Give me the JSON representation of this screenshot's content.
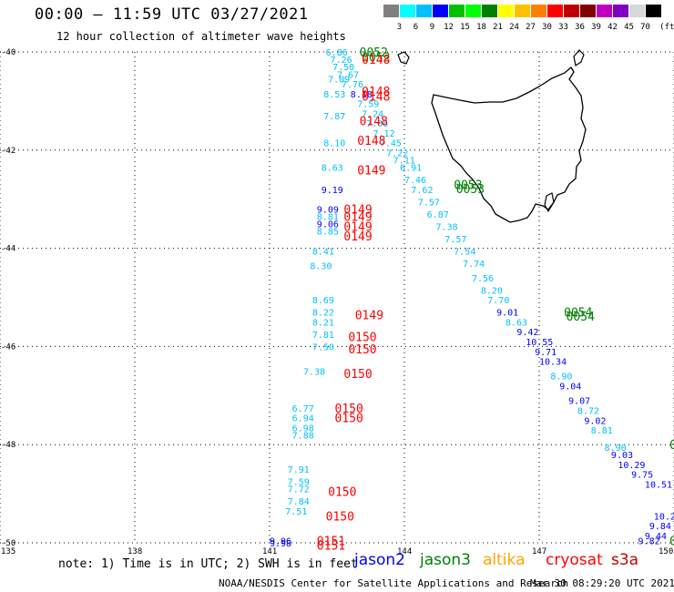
{
  "header": {
    "title": "00:00 – 11:59 UTC 03/27/2021",
    "subtitle": "12 hour collection of altimeter wave heights"
  },
  "scale": {
    "unit": "(ft)",
    "colors": [
      "#808080",
      "#00ffff",
      "#00bfff",
      "#0000ff",
      "#00c000",
      "#00ff00",
      "#008000",
      "#ffff00",
      "#ffc000",
      "#ff8000",
      "#ff0000",
      "#c00000",
      "#800000",
      "#c000c0",
      "#8000c0",
      "#d8d8d8",
      "#000000"
    ],
    "labels": [
      "3",
      "6",
      "9",
      "12",
      "15",
      "18",
      "21",
      "24",
      "27",
      "30",
      "33",
      "36",
      "39",
      "42",
      "45",
      "70"
    ]
  },
  "map": {
    "lat_ticks": [
      "-40",
      "-42",
      "-44",
      "-46",
      "-48",
      "-50"
    ],
    "lon_ticks": [
      "135",
      "138",
      "141",
      "144",
      "147",
      "150"
    ],
    "swh_values": [
      {
        "lon": 142.25,
        "lat": -40.0,
        "v": "6.86",
        "c": "#00bfff"
      },
      {
        "lon": 142.35,
        "lat": -40.15,
        "v": "7.26",
        "c": "#00bfff"
      },
      {
        "lon": 142.4,
        "lat": -40.3,
        "v": "7.50",
        "c": "#00bfff"
      },
      {
        "lon": 142.5,
        "lat": -40.45,
        "v": "7.67",
        "c": "#00bfff"
      },
      {
        "lon": 142.3,
        "lat": -40.55,
        "v": "7.09",
        "c": "#00bfff"
      },
      {
        "lon": 142.6,
        "lat": -40.65,
        "v": "7.76",
        "c": "#00bfff"
      },
      {
        "lon": 142.2,
        "lat": -40.85,
        "v": "8.53",
        "c": "#00bfff"
      },
      {
        "lon": 142.8,
        "lat": -40.85,
        "v": "8.18",
        "c": "#0000ff"
      },
      {
        "lon": 142.95,
        "lat": -41.05,
        "v": "7.59",
        "c": "#00bfff"
      },
      {
        "lon": 143.05,
        "lat": -41.25,
        "v": "7.24",
        "c": "#00bfff"
      },
      {
        "lon": 142.2,
        "lat": -41.3,
        "v": "7.87",
        "c": "#00bfff"
      },
      {
        "lon": 143.15,
        "lat": -41.45,
        "v": "7.06",
        "c": "#00bfff"
      },
      {
        "lon": 143.3,
        "lat": -41.65,
        "v": "7.12",
        "c": "#00bfff"
      },
      {
        "lon": 142.2,
        "lat": -41.85,
        "v": "8.10",
        "c": "#00bfff"
      },
      {
        "lon": 143.45,
        "lat": -41.85,
        "v": "7.45",
        "c": "#00bfff"
      },
      {
        "lon": 143.6,
        "lat": -42.05,
        "v": "7.22",
        "c": "#00bfff"
      },
      {
        "lon": 143.75,
        "lat": -42.2,
        "v": "7.11",
        "c": "#00bfff"
      },
      {
        "lon": 142.15,
        "lat": -42.35,
        "v": "8.63",
        "c": "#00bfff"
      },
      {
        "lon": 143.9,
        "lat": -42.35,
        "v": "6.91",
        "c": "#00bfff"
      },
      {
        "lon": 144.0,
        "lat": -42.6,
        "v": "7.46",
        "c": "#00bfff"
      },
      {
        "lon": 142.15,
        "lat": -42.8,
        "v": "9.19",
        "c": "#0000ff"
      },
      {
        "lon": 144.15,
        "lat": -42.8,
        "v": "7.62",
        "c": "#00bfff"
      },
      {
        "lon": 144.3,
        "lat": -43.05,
        "v": "7.57",
        "c": "#00bfff"
      },
      {
        "lon": 142.05,
        "lat": -43.2,
        "v": "9.09",
        "c": "#0000ff"
      },
      {
        "lon": 144.5,
        "lat": -43.3,
        "v": "6.87",
        "c": "#00bfff"
      },
      {
        "lon": 142.05,
        "lat": -43.35,
        "v": "8.81",
        "c": "#00bfff"
      },
      {
        "lon": 144.7,
        "lat": -43.55,
        "v": "7.38",
        "c": "#00bfff"
      },
      {
        "lon": 142.05,
        "lat": -43.5,
        "v": "9.06",
        "c": "#0000ff"
      },
      {
        "lon": 142.05,
        "lat": -43.65,
        "v": "8.85",
        "c": "#00bfff"
      },
      {
        "lon": 144.9,
        "lat": -43.8,
        "v": "7.57",
        "c": "#00bfff"
      },
      {
        "lon": 141.95,
        "lat": -44.05,
        "v": "8.41",
        "c": "#00bfff"
      },
      {
        "lon": 145.1,
        "lat": -44.05,
        "v": "7.54",
        "c": "#00bfff"
      },
      {
        "lon": 141.9,
        "lat": -44.35,
        "v": "8.30",
        "c": "#00bfff"
      },
      {
        "lon": 145.3,
        "lat": -44.3,
        "v": "7.74",
        "c": "#00bfff"
      },
      {
        "lon": 145.5,
        "lat": -44.6,
        "v": "7.56",
        "c": "#00bfff"
      },
      {
        "lon": 145.7,
        "lat": -44.85,
        "v": "8.20",
        "c": "#00bfff"
      },
      {
        "lon": 141.95,
        "lat": -45.05,
        "v": "8.69",
        "c": "#00bfff"
      },
      {
        "lon": 145.85,
        "lat": -45.05,
        "v": "7.70",
        "c": "#00bfff"
      },
      {
        "lon": 141.95,
        "lat": -45.3,
        "v": "8.22",
        "c": "#00bfff"
      },
      {
        "lon": 146.05,
        "lat": -45.3,
        "v": "9.01",
        "c": "#0000ff"
      },
      {
        "lon": 141.95,
        "lat": -45.5,
        "v": "8.21",
        "c": "#00bfff"
      },
      {
        "lon": 146.25,
        "lat": -45.5,
        "v": "8.63",
        "c": "#00bfff"
      },
      {
        "lon": 146.5,
        "lat": -45.7,
        "v": "9.42",
        "c": "#0000ff"
      },
      {
        "lon": 141.95,
        "lat": -45.75,
        "v": "7.81",
        "c": "#00bfff"
      },
      {
        "lon": 141.95,
        "lat": -46.0,
        "v": "7.50",
        "c": "#00bfff"
      },
      {
        "lon": 146.7,
        "lat": -45.9,
        "v": "10.55",
        "c": "#0000ff"
      },
      {
        "lon": 146.9,
        "lat": -46.1,
        "v": "9.71",
        "c": "#0000ff"
      },
      {
        "lon": 147.0,
        "lat": -46.3,
        "v": "10.34",
        "c": "#0000ff"
      },
      {
        "lon": 141.75,
        "lat": -46.5,
        "v": "7.38",
        "c": "#00bfff"
      },
      {
        "lon": 147.25,
        "lat": -46.6,
        "v": "8.90",
        "c": "#00bfff"
      },
      {
        "lon": 147.45,
        "lat": -46.8,
        "v": "9.04",
        "c": "#0000ff"
      },
      {
        "lon": 147.65,
        "lat": -47.1,
        "v": "9.07",
        "c": "#0000ff"
      },
      {
        "lon": 141.5,
        "lat": -47.25,
        "v": "6.77",
        "c": "#00bfff"
      },
      {
        "lon": 147.85,
        "lat": -47.3,
        "v": "8.72",
        "c": "#00bfff"
      },
      {
        "lon": 141.5,
        "lat": -47.45,
        "v": "6.94",
        "c": "#00bfff"
      },
      {
        "lon": 148.0,
        "lat": -47.5,
        "v": "9.02",
        "c": "#0000ff"
      },
      {
        "lon": 141.5,
        "lat": -47.65,
        "v": "6.98",
        "c": "#00bfff"
      },
      {
        "lon": 148.15,
        "lat": -47.7,
        "v": "8.81",
        "c": "#00bfff"
      },
      {
        "lon": 141.5,
        "lat": -47.8,
        "v": "7.88",
        "c": "#00bfff"
      },
      {
        "lon": 148.45,
        "lat": -48.05,
        "v": "8.90",
        "c": "#00bfff"
      },
      {
        "lon": 148.6,
        "lat": -48.2,
        "v": "9.03",
        "c": "#0000ff"
      },
      {
        "lon": 148.75,
        "lat": -48.4,
        "v": "10.29",
        "c": "#0000ff"
      },
      {
        "lon": 141.4,
        "lat": -48.5,
        "v": "7.91",
        "c": "#00bfff"
      },
      {
        "lon": 149.05,
        "lat": -48.6,
        "v": "9.75",
        "c": "#0000ff"
      },
      {
        "lon": 141.4,
        "lat": -48.75,
        "v": "7.59",
        "c": "#00bfff"
      },
      {
        "lon": 149.35,
        "lat": -48.8,
        "v": "10.51",
        "c": "#0000ff"
      },
      {
        "lon": 141.4,
        "lat": -48.9,
        "v": "7.72",
        "c": "#00bfff"
      },
      {
        "lon": 141.4,
        "lat": -49.15,
        "v": "7.84",
        "c": "#00bfff"
      },
      {
        "lon": 141.35,
        "lat": -49.35,
        "v": "7.51",
        "c": "#00bfff"
      },
      {
        "lon": 149.55,
        "lat": -49.45,
        "v": "10.2",
        "c": "#0000ff"
      },
      {
        "lon": 149.45,
        "lat": -49.65,
        "v": "9.84",
        "c": "#0000ff"
      },
      {
        "lon": 149.35,
        "lat": -49.85,
        "v": "9.44",
        "c": "#0000ff"
      },
      {
        "lon": 149.2,
        "lat": -49.95,
        "v": "9.82",
        "c": "#0000ff"
      },
      {
        "lon": 141.0,
        "lat": -49.95,
        "v": "9.96",
        "c": "#0000ff"
      },
      {
        "lon": 141.0,
        "lat": -50.0,
        "v": "9.98",
        "c": "#0000ff"
      }
    ],
    "time_labels": [
      {
        "lon": 143.0,
        "lat": -40.0,
        "t": "0052",
        "c": "#008000"
      },
      {
        "lon": 143.05,
        "lat": -40.1,
        "t": "0052",
        "c": "#008000"
      },
      {
        "lon": 143.05,
        "lat": -40.15,
        "t": "0148",
        "c": "#ff0000"
      },
      {
        "lon": 143.05,
        "lat": -40.8,
        "t": "0148",
        "c": "#ff0000"
      },
      {
        "lon": 143.05,
        "lat": -40.9,
        "t": "0148",
        "c": "#ff0000"
      },
      {
        "lon": 143.0,
        "lat": -41.4,
        "t": "0148",
        "c": "#ff0000"
      },
      {
        "lon": 142.95,
        "lat": -41.8,
        "t": "0148",
        "c": "#ff0000"
      },
      {
        "lon": 142.95,
        "lat": -42.4,
        "t": "0149",
        "c": "#ff0000"
      },
      {
        "lon": 145.1,
        "lat": -42.7,
        "t": "0053",
        "c": "#008000"
      },
      {
        "lon": 145.15,
        "lat": -42.78,
        "t": "0053",
        "c": "#008000"
      },
      {
        "lon": 142.65,
        "lat": -43.2,
        "t": "0149",
        "c": "#ff0000"
      },
      {
        "lon": 142.65,
        "lat": -43.35,
        "t": "0149",
        "c": "#ff0000"
      },
      {
        "lon": 142.65,
        "lat": -43.55,
        "t": "0149",
        "c": "#ff0000"
      },
      {
        "lon": 142.65,
        "lat": -43.75,
        "t": "0149",
        "c": "#ff0000"
      },
      {
        "lon": 142.9,
        "lat": -45.35,
        "t": "0149",
        "c": "#ff0000"
      },
      {
        "lon": 147.55,
        "lat": -45.3,
        "t": "0054",
        "c": "#008000"
      },
      {
        "lon": 147.6,
        "lat": -45.38,
        "t": "0054",
        "c": "#008000"
      },
      {
        "lon": 142.75,
        "lat": -45.8,
        "t": "0150",
        "c": "#ff0000"
      },
      {
        "lon": 142.75,
        "lat": -46.05,
        "t": "0150",
        "c": "#ff0000"
      },
      {
        "lon": 142.65,
        "lat": -46.55,
        "t": "0150",
        "c": "#ff0000"
      },
      {
        "lon": 142.45,
        "lat": -47.25,
        "t": "0150",
        "c": "#ff0000"
      },
      {
        "lon": 142.45,
        "lat": -47.45,
        "t": "0150",
        "c": "#ff0000"
      },
      {
        "lon": 149.9,
        "lat": -48.0,
        "t": "0",
        "c": "#008000"
      },
      {
        "lon": 142.3,
        "lat": -48.95,
        "t": "0150",
        "c": "#ff0000"
      },
      {
        "lon": 142.25,
        "lat": -49.45,
        "t": "0150",
        "c": "#ff0000"
      },
      {
        "lon": 149.9,
        "lat": -49.95,
        "t": "0",
        "c": "#008000"
      },
      {
        "lon": 142.05,
        "lat": -49.95,
        "t": "0151",
        "c": "#ff0000"
      },
      {
        "lon": 142.05,
        "lat": -50.05,
        "t": "0151",
        "c": "#ff0000"
      }
    ]
  },
  "footer": {
    "note": "note: 1) Time is in UTC; 2) SWH is in feet",
    "satellites": [
      {
        "name": "jason2",
        "color": "#0000ff"
      },
      {
        "name": "jason3",
        "color": "#008000"
      },
      {
        "name": "altika",
        "color": "#ffa500"
      },
      {
        "name": "cryosat",
        "color": "#ff0000"
      },
      {
        "name": "s3a",
        "color": "#c00000"
      }
    ],
    "credit": "NOAA/NESDIS Center for Satellite Applications and Research",
    "timestamp": "Mar 30 08:29:20 UTC 2021"
  }
}
